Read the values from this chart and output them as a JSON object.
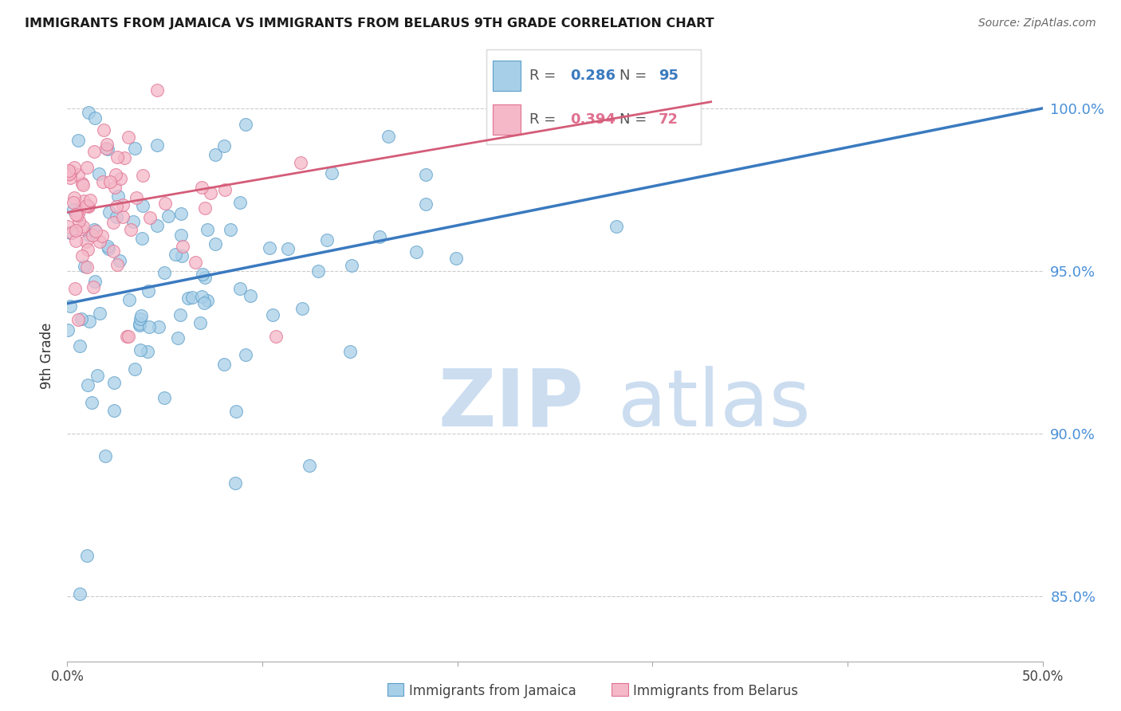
{
  "title": "IMMIGRANTS FROM JAMAICA VS IMMIGRANTS FROM BELARUS 9TH GRADE CORRELATION CHART",
  "source": "Source: ZipAtlas.com",
  "ylabel": "9th Grade",
  "yticks": [
    85.0,
    90.0,
    95.0,
    100.0
  ],
  "ytick_labels": [
    "85.0%",
    "90.0%",
    "95.0%",
    "100.0%"
  ],
  "xlim": [
    0.0,
    0.5
  ],
  "ylim": [
    83.0,
    101.8
  ],
  "legend_blue_R": "0.286",
  "legend_blue_N": "95",
  "legend_pink_R": "0.394",
  "legend_pink_N": "72",
  "blue_color": "#a8cfe8",
  "pink_color": "#f4b8c8",
  "blue_edge_color": "#5b9ec9",
  "pink_edge_color": "#e07090",
  "blue_line_color": "#3a7abf",
  "pink_line_color": "#d45c78",
  "blue_series_label": "Immigrants from Jamaica",
  "pink_series_label": "Immigrants from Belarus",
  "blue_trend_x0": 0.0,
  "blue_trend_x1": 0.5,
  "blue_trend_y0": 94.0,
  "blue_trend_y1": 100.0,
  "pink_trend_x0": 0.0,
  "pink_trend_x1": 0.33,
  "pink_trend_y0": 96.8,
  "pink_trend_y1": 100.2,
  "watermark_zip_color": "#ccddf0",
  "watermark_atlas_color": "#ccddf0"
}
